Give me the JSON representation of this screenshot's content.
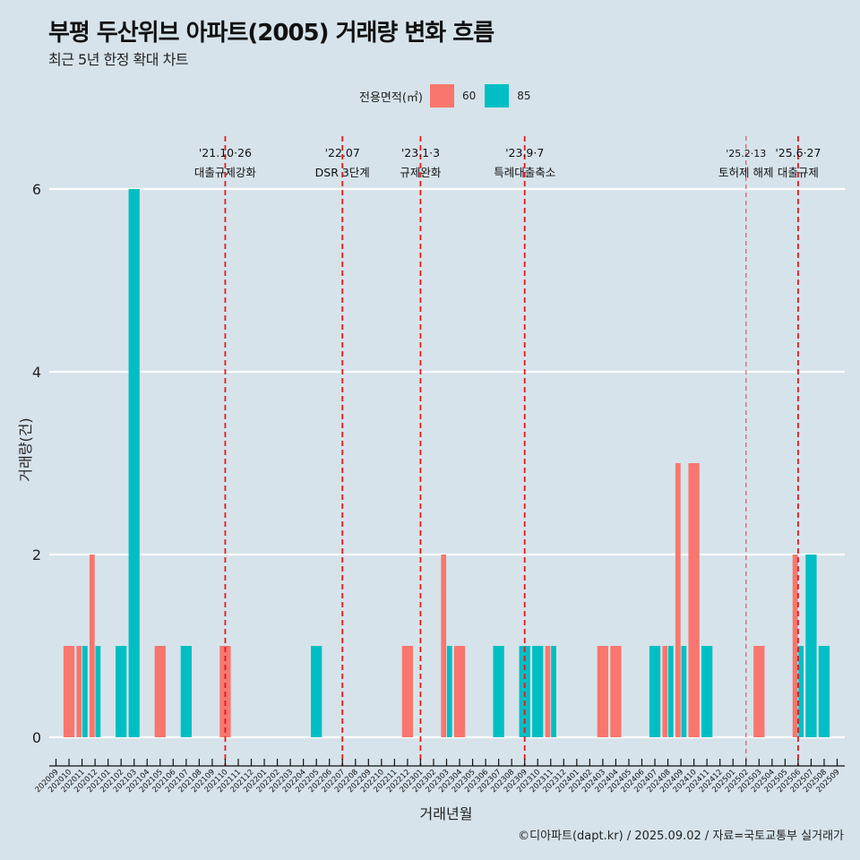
{
  "header": {
    "title": "부평 두산위브 아파트(2005) 거래량 변화 흐름",
    "subtitle": "최근 5년 한정 확대 차트"
  },
  "legend": {
    "title": "전용면적(㎡)",
    "items": [
      {
        "label": "60",
        "color": "#f8766d"
      },
      {
        "label": "85",
        "color": "#00bfc4"
      }
    ]
  },
  "footer": {
    "credit": "©디아파트(dapt.kr) / 2025.09.02 / 자료=국토교통부 실거래가"
  },
  "chart_data": {
    "type": "bar",
    "title": "부평 두산위브 아파트(2005) 거래량 변화 흐름",
    "subtitle": "최근 5년 한정 확대 차트",
    "xlabel": "거래년월",
    "ylabel": "거래량(건)",
    "ylim": [
      0,
      6
    ],
    "yticks": [
      0,
      2,
      4,
      6
    ],
    "grid": true,
    "legend_position": "top",
    "bar_mode": "dodge",
    "categories": [
      "202009",
      "202010",
      "202011",
      "202012",
      "202101",
      "202102",
      "202103",
      "202104",
      "202105",
      "202106",
      "202107",
      "202108",
      "202109",
      "202110",
      "202111",
      "202112",
      "202201",
      "202202",
      "202203",
      "202204",
      "202205",
      "202206",
      "202207",
      "202208",
      "202209",
      "202210",
      "202211",
      "202212",
      "202301",
      "202302",
      "202303",
      "202304",
      "202305",
      "202306",
      "202307",
      "202308",
      "202309",
      "202310",
      "202311",
      "202312",
      "202401",
      "202402",
      "202403",
      "202404",
      "202405",
      "202406",
      "202407",
      "202408",
      "202409",
      "202410",
      "202411",
      "202412",
      "202501",
      "202502",
      "202503",
      "202504",
      "202505",
      "202506",
      "202507",
      "202508",
      "202509"
    ],
    "series": [
      {
        "name": "60",
        "color": "#f8766d",
        "points": [
          {
            "x": "202010",
            "y": 1
          },
          {
            "x": "202011",
            "y": 1
          },
          {
            "x": "202012",
            "y": 2
          },
          {
            "x": "202105",
            "y": 1
          },
          {
            "x": "202110",
            "y": 1
          },
          {
            "x": "202212",
            "y": 1
          },
          {
            "x": "202303",
            "y": 2
          },
          {
            "x": "202304",
            "y": 1
          },
          {
            "x": "202311",
            "y": 1
          },
          {
            "x": "202403",
            "y": 1
          },
          {
            "x": "202404",
            "y": 1
          },
          {
            "x": "202408",
            "y": 1
          },
          {
            "x": "202409",
            "y": 3
          },
          {
            "x": "202410",
            "y": 3
          },
          {
            "x": "202503",
            "y": 1
          },
          {
            "x": "202506",
            "y": 2
          }
        ]
      },
      {
        "name": "85",
        "color": "#00bfc4",
        "points": [
          {
            "x": "202011",
            "y": 1
          },
          {
            "x": "202012",
            "y": 1
          },
          {
            "x": "202102",
            "y": 1
          },
          {
            "x": "202103",
            "y": 6
          },
          {
            "x": "202107",
            "y": 1
          },
          {
            "x": "202205",
            "y": 1
          },
          {
            "x": "202303",
            "y": 1
          },
          {
            "x": "202307",
            "y": 1
          },
          {
            "x": "202309",
            "y": 1
          },
          {
            "x": "202310",
            "y": 1
          },
          {
            "x": "202311",
            "y": 1
          },
          {
            "x": "202407",
            "y": 1
          },
          {
            "x": "202408",
            "y": 1
          },
          {
            "x": "202409",
            "y": 1
          },
          {
            "x": "202411",
            "y": 1
          },
          {
            "x": "202506",
            "y": 1
          },
          {
            "x": "202507",
            "y": 2
          },
          {
            "x": "202508",
            "y": 1
          }
        ]
      }
    ],
    "annotations": [
      {
        "x": "202110",
        "date": "'21.10·26",
        "label": "대출규제강화",
        "style": "bold"
      },
      {
        "x": "202207",
        "date": "'22.07",
        "label": "DSR 3단계",
        "style": "bold"
      },
      {
        "x": "202301",
        "date": "'23.1·3",
        "label": "규제완화",
        "style": "bold"
      },
      {
        "x": "202309",
        "date": "'23.9·7",
        "label": "특례대출축소",
        "style": "bold"
      },
      {
        "x": "202502",
        "date": "'25.2·13",
        "label": "토허제 해제",
        "style": "light"
      },
      {
        "x": "202506",
        "date": "'25.6·27",
        "label": "대출규제",
        "style": "bold"
      }
    ],
    "annotation_color": "#e41a1c"
  }
}
